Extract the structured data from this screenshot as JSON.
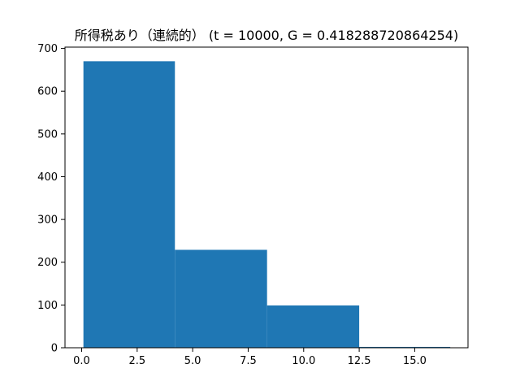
{
  "chart_data": {
    "type": "bar",
    "title": "所得税あり（連続的） (t = 10000, G = 0.418288720864254)",
    "xlabel": "",
    "ylabel": "",
    "bins": [
      {
        "x0": 0.08,
        "x1": 4.2,
        "value": 670
      },
      {
        "x0": 4.2,
        "x1": 8.35,
        "value": 229
      },
      {
        "x0": 8.35,
        "x1": 12.5,
        "value": 99
      },
      {
        "x0": 12.5,
        "x1": 16.6,
        "value": 2
      }
    ],
    "xlim": [
      -0.75,
      17.4
    ],
    "ylim": [
      0,
      703
    ],
    "x_ticks": [
      0.0,
      2.5,
      5.0,
      7.5,
      10.0,
      12.5,
      15.0
    ],
    "x_tick_labels": [
      "0.0",
      "2.5",
      "5.0",
      "7.5",
      "10.0",
      "12.5",
      "15.0"
    ],
    "y_ticks": [
      0,
      100,
      200,
      300,
      400,
      500,
      600,
      700
    ],
    "y_tick_labels": [
      "0",
      "100",
      "200",
      "300",
      "400",
      "500",
      "600",
      "700"
    ],
    "bar_color": "#1f77b4",
    "grid": false,
    "legend": "none"
  }
}
